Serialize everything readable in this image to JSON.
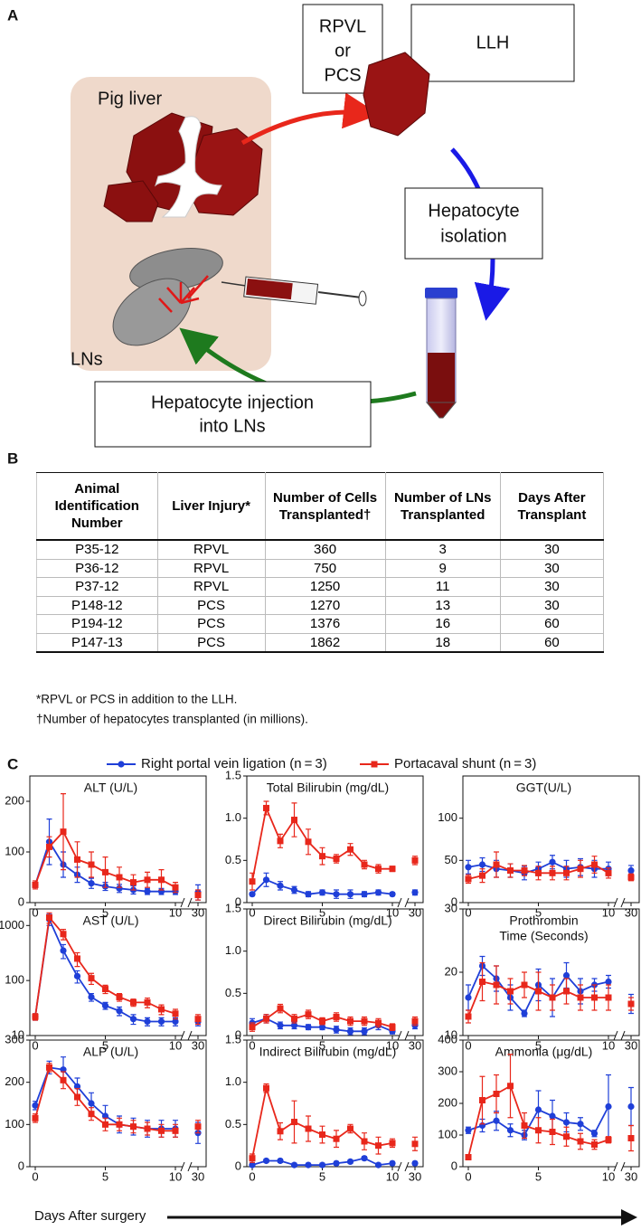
{
  "panel_labels": {
    "a": "A",
    "b": "B",
    "c": "C"
  },
  "diagram": {
    "pig_liver": "Pig liver",
    "lns": "LNs",
    "rpvl_or_pcs": [
      "RPVL",
      "or",
      "PCS"
    ],
    "llh": "LLH",
    "isolation": [
      "Hepatocyte",
      "isolation"
    ],
    "injection": [
      "Hepatocyte injection",
      "into LNs"
    ]
  },
  "table": {
    "header": [
      "Animal Identification Number",
      "Liver Injury*",
      "Number of Cells Transplanted†",
      "Number of LNs Transplanted",
      "Days After Transplant"
    ],
    "rows": [
      [
        "P35-12",
        "RPVL",
        360,
        3,
        30
      ],
      [
        "P36-12",
        "RPVL",
        750,
        9,
        30
      ],
      [
        "P37-12",
        "RPVL",
        1250,
        11,
        30
      ],
      [
        "P148-12",
        "PCS",
        1270,
        13,
        30
      ],
      [
        "P194-12",
        "PCS",
        1376,
        16,
        60
      ],
      [
        "P147-13",
        "PCS",
        1862,
        18,
        60
      ]
    ]
  },
  "footnotes": [
    "*RPVL or PCS in addition to the LLH.",
    "†Number of hepatocytes transplanted (in millions)."
  ],
  "legend": [
    {
      "name": "Right portal vein ligation (n = 3)",
      "color": "#1f3fd8",
      "marker": "circle"
    },
    {
      "name": "Portacaval shunt (n = 3)",
      "color": "#e8271b",
      "marker": "square"
    }
  ],
  "x_label": "Days After surgery",
  "chart_data": [
    {
      "type": "line",
      "title": [
        "ALT (U/L)"
      ],
      "x": [
        0,
        1,
        2,
        3,
        4,
        5,
        6,
        7,
        8,
        9,
        10,
        30
      ],
      "x_break": [
        10,
        30
      ],
      "xlim": [
        0,
        30
      ],
      "xticks": [
        0,
        5,
        10,
        30
      ],
      "ylim": [
        0,
        250
      ],
      "yticks": [
        0,
        100,
        200
      ],
      "series": [
        {
          "values": [
            35,
            120,
            75,
            55,
            38,
            32,
            28,
            25,
            22,
            22,
            22,
            20
          ],
          "errors": [
            5,
            45,
            25,
            15,
            10,
            8,
            8,
            8,
            6,
            6,
            6,
            15
          ]
        },
        {
          "values": [
            35,
            110,
            140,
            85,
            75,
            60,
            50,
            40,
            45,
            45,
            30,
            15
          ],
          "errors": [
            8,
            20,
            75,
            35,
            25,
            30,
            20,
            15,
            15,
            20,
            10,
            10
          ]
        }
      ]
    },
    {
      "type": "line",
      "title": [
        "Total Bilirubin (mg/dL)"
      ],
      "x": [
        0,
        1,
        2,
        3,
        4,
        5,
        6,
        7,
        8,
        9,
        10,
        30
      ],
      "x_break": [
        10,
        30
      ],
      "xlim": [
        0,
        30
      ],
      "xticks": [
        0,
        5,
        10,
        30
      ],
      "ylim": [
        0,
        1.5
      ],
      "yticks": [
        0,
        0.5,
        {
          "value": 1,
          "label": "1.0"
        },
        1.5
      ],
      "series": [
        {
          "values": [
            0.1,
            0.27,
            0.2,
            0.15,
            0.1,
            0.12,
            0.1,
            0.1,
            0.1,
            0.12,
            0.1,
            0.12
          ],
          "errors": [
            0.02,
            0.08,
            0.05,
            0.04,
            0.03,
            0.03,
            0.05,
            0.05,
            0.03,
            0.03,
            0.02,
            0.03
          ]
        },
        {
          "values": [
            0.25,
            1.12,
            0.73,
            0.98,
            0.72,
            0.55,
            0.52,
            0.63,
            0.45,
            0.4,
            0.4,
            0.5
          ],
          "errors": [
            0.1,
            0.08,
            0.08,
            0.2,
            0.15,
            0.1,
            0.05,
            0.07,
            0.05,
            0.05,
            0.03,
            0.05
          ]
        }
      ]
    },
    {
      "type": "line",
      "title": [
        "GGT(U/L)"
      ],
      "x": [
        0,
        1,
        2,
        3,
        4,
        5,
        6,
        7,
        8,
        9,
        10,
        30
      ],
      "x_break": [
        10,
        30
      ],
      "xlim": [
        0,
        30
      ],
      "xticks": [
        0,
        5,
        10,
        30
      ],
      "ylim": [
        0,
        150
      ],
      "yticks": [
        0,
        50,
        100
      ],
      "series": [
        {
          "values": [
            42,
            45,
            40,
            38,
            35,
            40,
            48,
            40,
            42,
            40,
            40,
            38
          ],
          "errors": [
            8,
            8,
            10,
            8,
            8,
            8,
            8,
            10,
            10,
            10,
            8,
            6
          ]
        },
        {
          "values": [
            28,
            32,
            45,
            38,
            38,
            35,
            35,
            35,
            40,
            45,
            35,
            30
          ],
          "errors": [
            5,
            8,
            15,
            8,
            6,
            8,
            8,
            8,
            10,
            10,
            6,
            4
          ]
        }
      ]
    },
    {
      "type": "line",
      "title": [
        "AST (U/L)"
      ],
      "x": [
        0,
        1,
        2,
        3,
        4,
        5,
        6,
        7,
        8,
        9,
        10,
        30
      ],
      "x_break": [
        10,
        30
      ],
      "xlim": [
        0,
        30
      ],
      "xticks": [
        0,
        5,
        10,
        30
      ],
      "ylim": [
        10,
        2000
      ],
      "yticks": [
        10,
        100,
        1000
      ],
      "log_scale": true,
      "series": [
        {
          "values": [
            22,
            1300,
            350,
            120,
            50,
            35,
            28,
            20,
            18,
            18,
            18,
            18
          ],
          "errors": [
            3,
            300,
            100,
            30,
            8,
            5,
            5,
            4,
            3,
            3,
            3,
            3
          ]
        },
        {
          "values": [
            22,
            1400,
            700,
            250,
            110,
            70,
            50,
            40,
            40,
            30,
            25,
            20
          ],
          "errors": [
            3,
            300,
            150,
            70,
            25,
            12,
            8,
            6,
            8,
            6,
            5,
            4
          ]
        }
      ]
    },
    {
      "type": "line",
      "title": [
        "Direct Bilirubin (mg/dL)"
      ],
      "x": [
        0,
        1,
        2,
        3,
        4,
        5,
        6,
        7,
        8,
        9,
        10,
        30
      ],
      "x_break": [
        10,
        30
      ],
      "xlim": [
        0,
        30
      ],
      "xticks": [
        0,
        5,
        10,
        30
      ],
      "ylim": [
        0,
        1.5
      ],
      "yticks": [
        0,
        0.5,
        {
          "value": 1,
          "label": "1.0"
        },
        1.5
      ],
      "series": [
        {
          "values": [
            0.15,
            0.2,
            0.12,
            0.12,
            0.1,
            0.1,
            0.07,
            0.05,
            0.05,
            0.12,
            0.05,
            0.12
          ],
          "errors": [
            0.05,
            0.05,
            0.04,
            0.04,
            0.03,
            0.03,
            0.04,
            0.04,
            0.04,
            0.05,
            0.03,
            0.04
          ]
        },
        {
          "values": [
            0.1,
            0.2,
            0.32,
            0.2,
            0.25,
            0.17,
            0.22,
            0.17,
            0.17,
            0.15,
            0.1,
            0.17
          ],
          "errors": [
            0.05,
            0.05,
            0.05,
            0.05,
            0.05,
            0.04,
            0.05,
            0.05,
            0.05,
            0.05,
            0.04,
            0.05
          ]
        }
      ]
    },
    {
      "type": "line",
      "title": [
        "Prothrombin",
        "Time (Seconds)"
      ],
      "x": [
        0,
        1,
        2,
        3,
        4,
        5,
        6,
        7,
        8,
        9,
        10,
        30
      ],
      "x_break": [
        10,
        30
      ],
      "xlim": [
        0,
        30
      ],
      "xticks": [
        0,
        5,
        10,
        30
      ],
      "ylim": [
        10,
        30
      ],
      "yticks": [
        10,
        20,
        30
      ],
      "series": [
        {
          "values": [
            16,
            21,
            19,
            16,
            13.5,
            18,
            16,
            19.5,
            17,
            18,
            18.5,
            15
          ],
          "errors": [
            2,
            1.5,
            2,
            2,
            0.5,
            2.5,
            3,
            2,
            2,
            1,
            1,
            1.5
          ]
        },
        {
          "values": [
            13,
            18.5,
            18,
            17,
            18,
            17,
            16,
            17,
            16,
            16,
            16,
            15
          ],
          "errors": [
            1,
            3,
            3,
            2,
            2,
            3,
            2,
            2,
            2,
            2,
            2,
            1
          ]
        }
      ]
    },
    {
      "type": "line",
      "title": [
        "ALP (U/L)"
      ],
      "x": [
        0,
        1,
        2,
        3,
        4,
        5,
        6,
        7,
        8,
        9,
        10,
        30
      ],
      "x_break": [
        10,
        30
      ],
      "xlim": [
        0,
        30
      ],
      "xticks": [
        0,
        5,
        10,
        30
      ],
      "ylim": [
        0,
        300
      ],
      "yticks": [
        0,
        100,
        200,
        300
      ],
      "series": [
        {
          "values": [
            145,
            235,
            230,
            190,
            150,
            120,
            100,
            95,
            90,
            90,
            90,
            80
          ],
          "errors": [
            10,
            15,
            30,
            20,
            25,
            25,
            20,
            20,
            20,
            20,
            20,
            25
          ]
        },
        {
          "values": [
            115,
            235,
            205,
            165,
            125,
            100,
            100,
            95,
            90,
            85,
            85,
            95
          ],
          "errors": [
            10,
            10,
            20,
            20,
            15,
            15,
            15,
            15,
            15,
            15,
            15,
            15
          ]
        }
      ]
    },
    {
      "type": "line",
      "title": [
        "Indirect Bilirubin (mg/dL)"
      ],
      "x": [
        0,
        1,
        2,
        3,
        4,
        5,
        6,
        7,
        8,
        9,
        10,
        30
      ],
      "x_break": [
        10,
        30
      ],
      "xlim": [
        0,
        30
      ],
      "xticks": [
        0,
        5,
        10,
        30
      ],
      "ylim": [
        0,
        1.5
      ],
      "yticks": [
        0,
        0.5,
        {
          "value": 1,
          "label": "1.0"
        },
        1.5
      ],
      "series": [
        {
          "values": [
            0.02,
            0.07,
            0.07,
            0.02,
            0.02,
            0.02,
            0.04,
            0.06,
            0.1,
            0.02,
            0.04,
            0.04
          ],
          "errors": [
            0.02,
            0.02,
            0.02,
            0.02,
            0.02,
            0.02,
            0.02,
            0.02,
            0.02,
            0.02,
            0.02,
            0.02
          ]
        },
        {
          "values": [
            0.1,
            0.93,
            0.42,
            0.53,
            0.45,
            0.38,
            0.33,
            0.45,
            0.3,
            0.25,
            0.28,
            0.27
          ],
          "errors": [
            0.05,
            0.05,
            0.1,
            0.25,
            0.15,
            0.1,
            0.1,
            0.05,
            0.1,
            0.1,
            0.05,
            0.08
          ]
        }
      ]
    },
    {
      "type": "line",
      "title": [
        "Ammonia (μg/dL)"
      ],
      "x": [
        0,
        1,
        2,
        3,
        4,
        5,
        6,
        7,
        8,
        9,
        10,
        30
      ],
      "x_break": [
        10,
        30
      ],
      "xlim": [
        0,
        30
      ],
      "xticks": [
        0,
        5,
        10,
        30
      ],
      "ylim": [
        0,
        400
      ],
      "yticks": [
        0,
        100,
        200,
        300,
        400
      ],
      "series": [
        {
          "values": [
            115,
            130,
            145,
            115,
            100,
            180,
            160,
            140,
            135,
            105,
            190,
            190
          ],
          "errors": [
            10,
            20,
            30,
            20,
            15,
            60,
            50,
            30,
            20,
            10,
            100,
            60
          ]
        },
        {
          "values": [
            30,
            210,
            230,
            255,
            130,
            115,
            110,
            95,
            80,
            70,
            85,
            90
          ],
          "errors": [
            5,
            75,
            60,
            100,
            40,
            40,
            40,
            30,
            25,
            15,
            10,
            40
          ]
        }
      ]
    }
  ]
}
